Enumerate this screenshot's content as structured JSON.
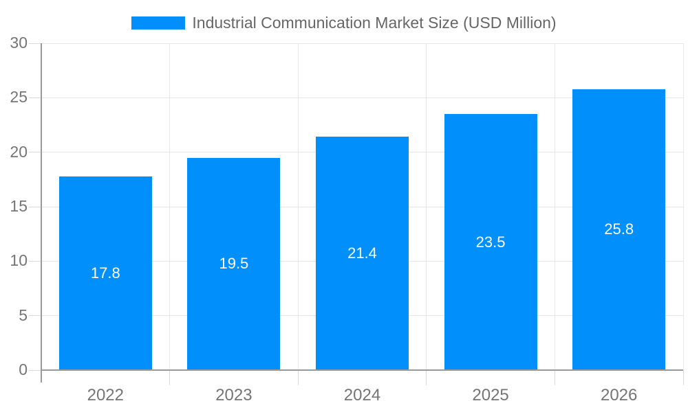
{
  "chart_data": {
    "type": "bar",
    "title": "Industrial Communication Market Size (USD Million)",
    "legend": [
      "Industrial Communication Market Size (USD Million)"
    ],
    "legend_position": "top-center",
    "categories": [
      "2022",
      "2023",
      "2024",
      "2025",
      "2026"
    ],
    "series": [
      {
        "name": "Industrial Communication Market Size (USD Million)",
        "values": [
          17.8,
          19.5,
          21.4,
          23.5,
          25.8
        ]
      }
    ],
    "value_labels": [
      "17.8",
      "19.5",
      "21.4",
      "23.5",
      "25.8"
    ],
    "value_labels_shown": true,
    "xlabel": "",
    "ylabel": "",
    "ylim": [
      0,
      30
    ],
    "ytick_step": 5,
    "yticks": [
      0,
      5,
      10,
      15,
      20,
      25,
      30
    ],
    "grid": "horizontal and vertical gridlines on",
    "colors": {
      "bar": "#008FFB",
      "value_label": "#ffffff",
      "grid_line": "#e6e6e6",
      "axis_line": "#999999",
      "tick_mark": "#d9d9d9",
      "tick_label": "#757575",
      "legend_text": "#666666",
      "background": "#ffffff"
    }
  }
}
